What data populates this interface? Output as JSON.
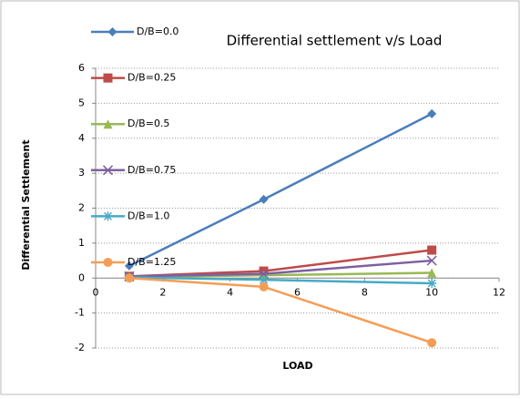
{
  "chart_data": {
    "type": "line",
    "title": "Differential settlement v/s Load",
    "xlabel": "LOAD",
    "ylabel": "Differential Settlement",
    "x": [
      1,
      5,
      10
    ],
    "series": [
      {
        "name": "D/B=0.0",
        "color": "#4a7ebb",
        "marker": "diamond",
        "values": [
          0.35,
          2.25,
          4.7
        ]
      },
      {
        "name": "D/B=0.25",
        "color": "#be4b48",
        "marker": "square",
        "values": [
          0.05,
          0.2,
          0.8
        ]
      },
      {
        "name": "D/B=0.5",
        "color": "#98b954",
        "marker": "triangle",
        "values": [
          0.03,
          0.08,
          0.15
        ]
      },
      {
        "name": "D/B=0.75",
        "color": "#7d60a0",
        "marker": "x",
        "values": [
          0.05,
          0.12,
          0.5
        ]
      },
      {
        "name": "D/B=1.0",
        "color": "#46aac5",
        "marker": "star",
        "values": [
          0.02,
          -0.05,
          -0.15
        ]
      },
      {
        "name": "D/B=1.25",
        "color": "#f59d56",
        "marker": "circle",
        "values": [
          0,
          -0.25,
          -1.85
        ]
      }
    ],
    "xlim": [
      0,
      12
    ],
    "xticks": [
      0,
      2,
      4,
      6,
      8,
      10,
      12
    ],
    "ylim": [
      -2,
      6
    ],
    "yticks": [
      -2,
      -1,
      0,
      1,
      2,
      3,
      4,
      5,
      6
    ],
    "grid": true
  }
}
